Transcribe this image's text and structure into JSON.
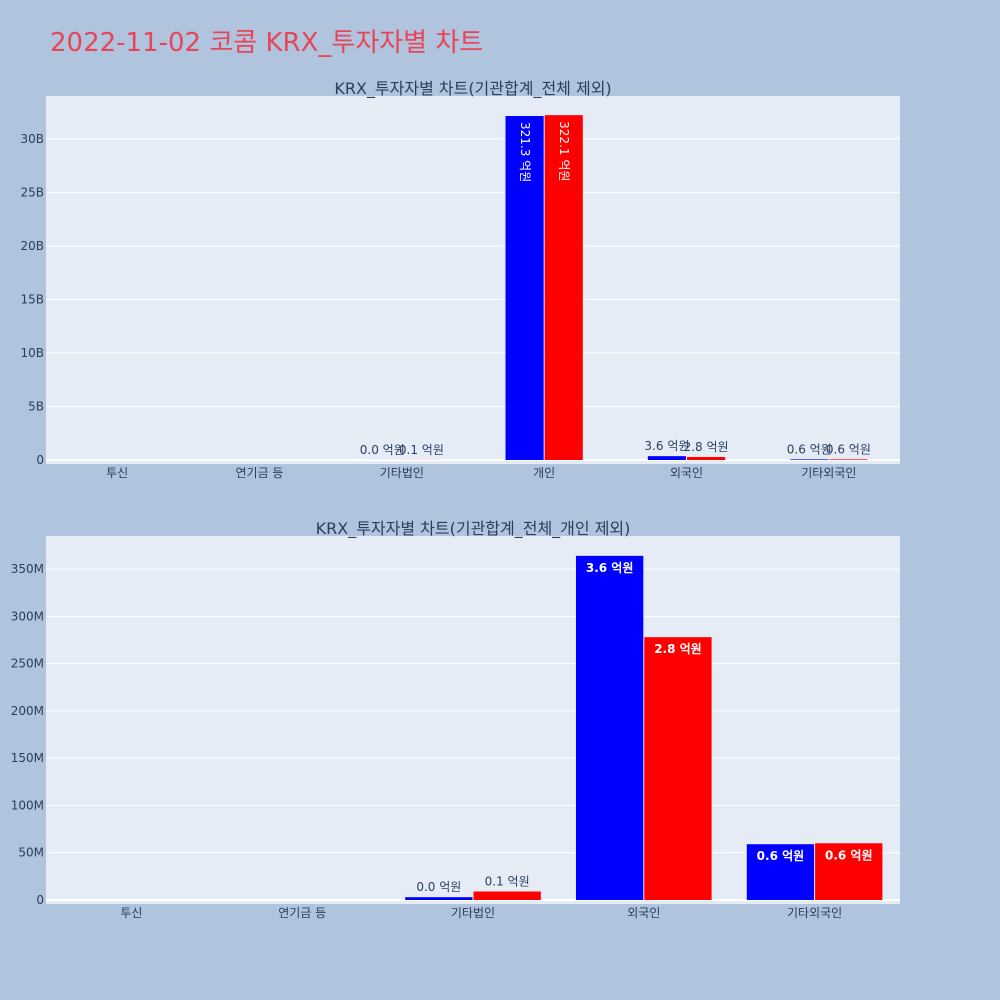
{
  "page": {
    "title": "2022-11-02 코콤 KRX_투자자별 차트"
  },
  "colors": {
    "page_bg": "#b0c4de",
    "plot_bg": "#e5ecf6",
    "title_color": "#e8455a",
    "series_blue": "#0000ff",
    "series_red": "#ff0000",
    "grid": "#ffffff",
    "text": "#2a3f5f"
  },
  "chart_data": [
    {
      "type": "bar",
      "title": "KRX_투자자별 차트(기관합계_전체 제외)",
      "categories": [
        "투신",
        "연기금 등",
        "기타법인",
        "개인",
        "외국인",
        "기타외국인"
      ],
      "series": [
        {
          "color": "#0000ff",
          "values": [
            0,
            0,
            4000000,
            32130000000,
            360000000,
            60000000
          ],
          "labels": [
            "",
            "",
            "0.0 억원",
            "321.3 억원",
            "3.6 억원",
            "0.6 억원"
          ]
        },
        {
          "color": "#ff0000",
          "values": [
            0,
            0,
            10000000,
            32210000000,
            280000000,
            60000000
          ],
          "labels": [
            "",
            "",
            "0.1 억원",
            "322.1 억원",
            "2.8 억원",
            "0.6 억원"
          ]
        }
      ],
      "ylim": [
        0,
        34000000000
      ],
      "yticks": [
        0,
        5000000000,
        10000000000,
        15000000000,
        20000000000,
        25000000000,
        30000000000
      ],
      "ytick_labels": [
        "0",
        "5B",
        "10B",
        "15B",
        "20B",
        "25B",
        "30B"
      ],
      "grid": true,
      "legend": "none"
    },
    {
      "type": "bar",
      "title": "KRX_투자자별 차트(기관합계_전체_개인 제외)",
      "categories": [
        "투신",
        "연기금 등",
        "기타법인",
        "외국인",
        "기타외국인"
      ],
      "series": [
        {
          "color": "#0000ff",
          "values": [
            0,
            0,
            3000000,
            364000000,
            59000000
          ],
          "labels": [
            "",
            "",
            "0.0 억원",
            "3.6 억원",
            "0.6 억원"
          ]
        },
        {
          "color": "#ff0000",
          "values": [
            0,
            0,
            9000000,
            278000000,
            60000000
          ],
          "labels": [
            "",
            "",
            "0.1 억원",
            "2.8 억원",
            "0.6 억원"
          ]
        }
      ],
      "ylim": [
        0,
        385000000
      ],
      "yticks": [
        0,
        50000000,
        100000000,
        150000000,
        200000000,
        250000000,
        300000000,
        350000000
      ],
      "ytick_labels": [
        "0",
        "50M",
        "100M",
        "150M",
        "200M",
        "250M",
        "300M",
        "350M"
      ],
      "grid": true,
      "legend": "none"
    }
  ]
}
